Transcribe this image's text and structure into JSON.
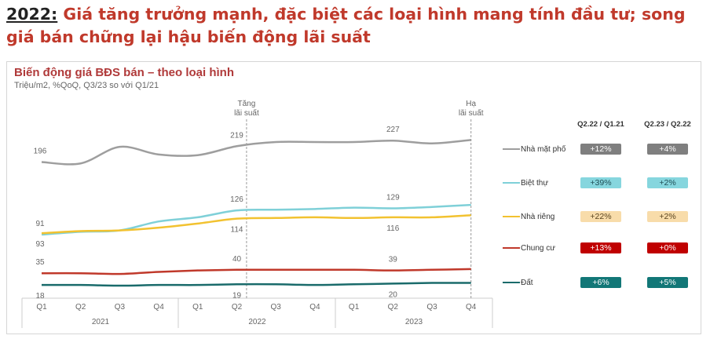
{
  "headline": {
    "year": "2022:",
    "text": " Giá tăng trưởng mạnh, đặc biệt các loại hình mang tính đầu tư; song giá bán chững lại hậu biến động lãi suất"
  },
  "chart_data": {
    "type": "line",
    "title": "Biến động giá BĐS bán – theo loại hình",
    "subtitle": "Triệu/m2, %QoQ, Q3/23 so với Q1/21",
    "x": [
      "Q1",
      "Q2",
      "Q3",
      "Q4",
      "Q1",
      "Q2",
      "Q3",
      "Q4",
      "Q1",
      "Q2",
      "Q3",
      "Q4"
    ],
    "years": [
      "2021",
      "2022",
      "2023"
    ],
    "ylim": [
      0,
      240
    ],
    "annotations": [
      {
        "text1": "Tăng",
        "text2": "lãi suất",
        "at_index": 5.25
      },
      {
        "text1": "Hạ",
        "text2": "lãi suất",
        "at_index": 11
      }
    ],
    "series": [
      {
        "name": "Nhà mặt phố",
        "color": "#9e9e9e",
        "values": [
          196,
          194,
          218,
          207,
          206,
          219,
          225,
          225,
          225,
          227,
          223,
          228
        ],
        "labels": {
          "0": "196",
          "5": "219",
          "9": "227"
        },
        "label_pos": "above",
        "change1": "+12%",
        "change2": "+4%",
        "pill_bg": "#7f7f7f",
        "pill_fg": "#ffffff"
      },
      {
        "name": "Biệt thự",
        "color": "#7fd0d8",
        "values": [
          91,
          95,
          97,
          110,
          116,
          126,
          127,
          128,
          130,
          129,
          131,
          134
        ],
        "labels": {
          "0": "91",
          "5": "126",
          "9": "129"
        },
        "label_pos": "above",
        "change1": "+39%",
        "change2": "+2%",
        "pill_bg": "#86d6de",
        "pill_fg": "#1f4e55"
      },
      {
        "name": "Nhà riêng",
        "color": "#f2c230",
        "values": [
          93,
          96,
          97,
          101,
          107,
          114,
          115,
          116,
          115,
          116,
          116,
          119
        ],
        "labels": {
          "0": "93",
          "5": "114",
          "9": "116"
        },
        "label_pos": "below",
        "change1": "+22%",
        "change2": "+2%",
        "pill_bg": "#f8dcaa",
        "pill_fg": "#5a4520"
      },
      {
        "name": "Chung cư",
        "color": "#c0392b",
        "values": [
          35,
          35,
          34,
          37,
          39,
          40,
          40,
          40,
          40,
          39,
          40,
          41
        ],
        "labels": {
          "0": "35",
          "5": "40",
          "9": "39"
        },
        "label_pos": "above",
        "change1": "+13%",
        "change2": "+0%",
        "pill_bg": "#c00000",
        "pill_fg": "#ffffff"
      },
      {
        "name": "Đất",
        "color": "#1a6b6b",
        "values": [
          18,
          18,
          17,
          18,
          18,
          19,
          19,
          18,
          19,
          20,
          21,
          21
        ],
        "labels": {
          "0": "18",
          "5": "19",
          "9": "20"
        },
        "label_pos": "below",
        "change1": "+6%",
        "change2": "+5%",
        "pill_bg": "#127777",
        "pill_fg": "#ffffff"
      }
    ],
    "table_headers": [
      "Q2.22 / Q1.21",
      "Q2.23 / Q2.22"
    ],
    "grid": false,
    "legend": "right"
  }
}
